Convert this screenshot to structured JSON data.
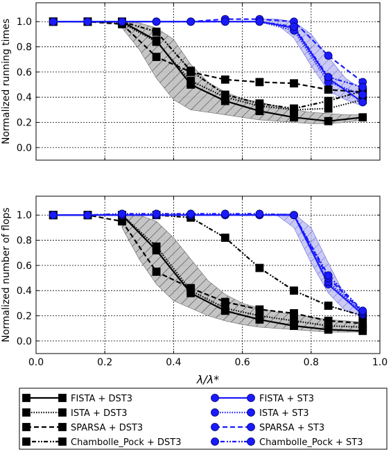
{
  "chart_data": [
    {
      "type": "line",
      "ylabel": "Normalized running times",
      "xlim": [
        0.0,
        1.0
      ],
      "ylim": [
        -0.1,
        1.15
      ],
      "xticks": [],
      "yticks": [
        "0.0",
        "0.2",
        "0.4",
        "0.6",
        "0.8",
        "1.0"
      ],
      "grid": true,
      "x": [
        0.05,
        0.15,
        0.25,
        0.35,
        0.45,
        0.55,
        0.65,
        0.75,
        0.85,
        0.95
      ],
      "series": [
        {
          "name": "FISTA + DST3",
          "color": "#000000",
          "marker": "square",
          "style": "solid",
          "values": [
            1.0,
            1.0,
            1.0,
            0.85,
            0.5,
            0.37,
            0.29,
            0.24,
            0.21,
            0.24
          ]
        },
        {
          "name": "ISTA + DST3",
          "color": "#000000",
          "marker": "square",
          "style": "dotted",
          "values": [
            1.0,
            1.0,
            0.99,
            0.84,
            0.53,
            0.4,
            0.33,
            0.3,
            0.31,
            0.38
          ]
        },
        {
          "name": "SPARSA + DST3",
          "color": "#000000",
          "marker": "square",
          "style": "dashed",
          "values": [
            1.0,
            1.0,
            0.98,
            0.72,
            0.6,
            0.54,
            0.52,
            0.51,
            0.46,
            0.44
          ]
        },
        {
          "name": "Chambolle_Pock + DST3",
          "color": "#000000",
          "marker": "square",
          "style": "dashdot",
          "values": [
            1.0,
            1.0,
            1.0,
            0.92,
            0.61,
            0.42,
            0.35,
            0.31,
            0.37,
            0.45
          ]
        },
        {
          "name": "FISTA + ST3",
          "color": "#1a1aff",
          "marker": "circle",
          "style": "solid",
          "values": [
            1.0,
            1.0,
            1.0,
            1.0,
            1.0,
            1.0,
            1.0,
            0.95,
            0.55,
            0.36
          ]
        },
        {
          "name": "ISTA + ST3",
          "color": "#1a1aff",
          "marker": "circle",
          "style": "dotted",
          "values": [
            1.0,
            1.0,
            1.0,
            1.0,
            1.0,
            1.0,
            1.0,
            0.93,
            0.52,
            0.42
          ]
        },
        {
          "name": "SPARSA + ST3",
          "color": "#1a1aff",
          "marker": "circle",
          "style": "dashed",
          "values": [
            1.0,
            1.0,
            1.0,
            1.0,
            1.0,
            1.02,
            1.02,
            1.0,
            0.73,
            0.52
          ]
        },
        {
          "name": "Chambolle_Pock + ST3",
          "color": "#1a1aff",
          "marker": "circle",
          "style": "dashdot",
          "values": [
            1.0,
            1.0,
            1.0,
            1.0,
            1.0,
            1.0,
            1.0,
            0.96,
            0.56,
            0.48
          ]
        }
      ],
      "bands": [
        {
          "color": "#999999",
          "hatch": true,
          "x": [
            0.25,
            0.3,
            0.35,
            0.4,
            0.45,
            0.5,
            0.55,
            0.6,
            0.65,
            0.7,
            0.75,
            0.8,
            0.85,
            0.9,
            0.95
          ],
          "upper": [
            1.0,
            0.99,
            0.95,
            0.86,
            0.66,
            0.52,
            0.44,
            0.39,
            0.36,
            0.33,
            0.3,
            0.28,
            0.27,
            0.26,
            0.26
          ],
          "lower": [
            0.95,
            0.78,
            0.55,
            0.38,
            0.3,
            0.28,
            0.26,
            0.24,
            0.22,
            0.21,
            0.2,
            0.19,
            0.19,
            0.2,
            0.22
          ]
        },
        {
          "color": "#8888ee",
          "hatch": true,
          "x": [
            0.65,
            0.7,
            0.75,
            0.8,
            0.85,
            0.9,
            0.95
          ],
          "upper": [
            1.02,
            1.02,
            1.0,
            0.9,
            0.72,
            0.55,
            0.46
          ],
          "lower": [
            1.0,
            0.98,
            0.87,
            0.65,
            0.45,
            0.38,
            0.33
          ]
        }
      ]
    },
    {
      "type": "line",
      "ylabel": "Normalized number of flops",
      "xlabel": "λ/λ*",
      "xlim": [
        0.0,
        1.0
      ],
      "ylim": [
        -0.1,
        1.15
      ],
      "xticks": [
        "0.0",
        "0.2",
        "0.4",
        "0.6",
        "0.8",
        "1.0"
      ],
      "yticks": [
        "0.0",
        "0.2",
        "0.4",
        "0.6",
        "0.8",
        "1.0"
      ],
      "grid": true,
      "x": [
        0.05,
        0.15,
        0.25,
        0.35,
        0.45,
        0.55,
        0.65,
        0.75,
        0.85,
        0.95
      ],
      "series": [
        {
          "name": "FISTA + DST3",
          "color": "#000000",
          "marker": "square",
          "style": "solid",
          "values": [
            1.0,
            1.0,
            1.0,
            0.72,
            0.38,
            0.24,
            0.17,
            0.12,
            0.09,
            0.08
          ]
        },
        {
          "name": "ISTA + DST3",
          "color": "#000000",
          "marker": "square",
          "style": "dotted",
          "values": [
            1.0,
            1.0,
            1.0,
            0.75,
            0.4,
            0.26,
            0.2,
            0.16,
            0.12,
            0.11
          ]
        },
        {
          "name": "SPARSA + DST3",
          "color": "#000000",
          "marker": "square",
          "style": "dashed",
          "values": [
            1.0,
            1.0,
            0.95,
            0.55,
            0.42,
            0.31,
            0.25,
            0.22,
            0.16,
            0.14
          ]
        },
        {
          "name": "Chambolle_Pock + DST3",
          "color": "#000000",
          "marker": "square",
          "style": "dashdot",
          "values": [
            1.0,
            1.0,
            1.0,
            1.0,
            0.98,
            0.82,
            0.58,
            0.4,
            0.28,
            0.2
          ]
        },
        {
          "name": "FISTA + ST3",
          "color": "#1a1aff",
          "marker": "circle",
          "style": "solid",
          "values": [
            1.0,
            1.0,
            1.0,
            1.0,
            1.0,
            1.0,
            1.0,
            1.0,
            0.45,
            0.21
          ]
        },
        {
          "name": "ISTA + ST3",
          "color": "#1a1aff",
          "marker": "circle",
          "style": "dotted",
          "values": [
            1.0,
            1.0,
            1.0,
            1.0,
            1.0,
            1.0,
            1.0,
            1.0,
            0.47,
            0.22
          ]
        },
        {
          "name": "SPARSA + ST3",
          "color": "#1a1aff",
          "marker": "circle",
          "style": "dashed",
          "values": [
            1.0,
            1.0,
            1.0,
            1.0,
            1.0,
            1.0,
            1.0,
            1.0,
            0.5,
            0.23
          ]
        },
        {
          "name": "Chambolle_Pock + ST3",
          "color": "#1a1aff",
          "marker": "circle",
          "style": "dashdot",
          "values": [
            1.0,
            1.0,
            1.01,
            1.01,
            1.01,
            1.01,
            1.01,
            1.0,
            0.52,
            0.24
          ]
        }
      ],
      "bands": [
        {
          "color": "#999999",
          "hatch": true,
          "x": [
            0.25,
            0.3,
            0.35,
            0.4,
            0.45,
            0.5,
            0.55,
            0.6,
            0.65,
            0.7,
            0.75,
            0.8,
            0.85,
            0.9,
            0.95
          ],
          "upper": [
            1.0,
            1.0,
            0.95,
            0.82,
            0.65,
            0.48,
            0.37,
            0.3,
            0.26,
            0.23,
            0.21,
            0.19,
            0.17,
            0.16,
            0.15
          ],
          "lower": [
            0.9,
            0.65,
            0.45,
            0.32,
            0.26,
            0.2,
            0.16,
            0.13,
            0.11,
            0.1,
            0.09,
            0.08,
            0.07,
            0.07,
            0.07
          ]
        },
        {
          "color": "#8888ee",
          "hatch": true,
          "x": [
            0.7,
            0.75,
            0.8,
            0.85,
            0.9,
            0.95
          ],
          "upper": [
            1.01,
            1.01,
            0.9,
            0.62,
            0.35,
            0.24
          ],
          "lower": [
            1.0,
            0.9,
            0.62,
            0.38,
            0.24,
            0.2
          ]
        }
      ]
    }
  ]
}
